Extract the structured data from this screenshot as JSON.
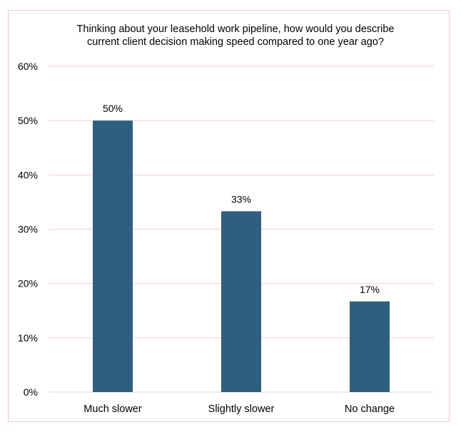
{
  "chart_data": {
    "type": "bar",
    "title": "Thinking about your leasehold work pipeline, how would you describe\ncurrent client decision making speed compared to one year ago?",
    "categories": [
      "Much slower",
      "Slightly slower",
      "No change"
    ],
    "values": [
      50,
      33.3,
      16.7
    ],
    "data_labels": [
      "50%",
      "33%",
      "17%"
    ],
    "ylim": [
      0,
      60
    ],
    "y_ticks": [
      0,
      10,
      20,
      30,
      40,
      50,
      60
    ],
    "y_tick_labels": [
      "0%",
      "10%",
      "20%",
      "30%",
      "40%",
      "50%",
      "60%"
    ],
    "xlabel": "",
    "ylabel": "",
    "grid": true,
    "legend": "none",
    "colors": {
      "bar": "#2e5f7f",
      "grid": "#f2cfcb",
      "frame": "#f0c8c4",
      "text": "#000000"
    }
  }
}
